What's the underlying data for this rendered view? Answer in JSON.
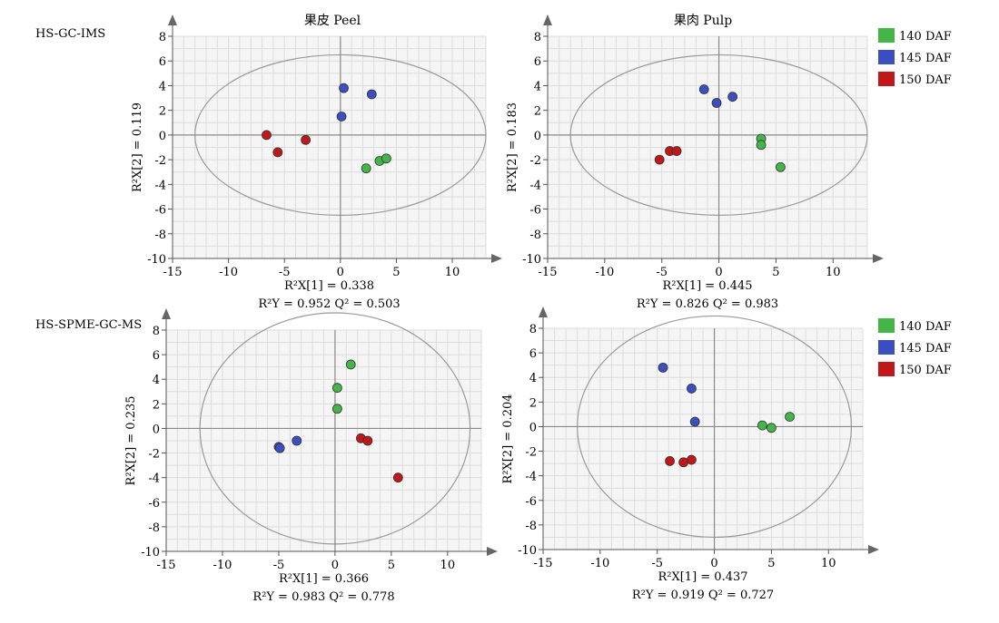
{
  "row_labels": [
    "HS-GC-IMS",
    "HS-SPME-GC-MS"
  ],
  "col_titles": [
    "果皮 Peel",
    "果肉 Pulp"
  ],
  "legend": [
    {
      "label": "140 DAF",
      "color": "#44b649"
    },
    {
      "label": "145 DAF",
      "color": "#3b4fc0"
    },
    {
      "label": "150 DAF",
      "color": "#c0171b"
    }
  ],
  "chart_data": [
    {
      "type": "scatter",
      "xlim": [
        -15,
        13
      ],
      "ylim": [
        -10,
        8
      ],
      "xticks": [
        -15,
        -10,
        -5,
        0,
        5,
        10
      ],
      "yticks": [
        8,
        6,
        4,
        2,
        0,
        -2,
        -4,
        -6,
        -8,
        -10
      ],
      "ellipse": {
        "rx": 13,
        "ry": 6.5
      },
      "xlabel": "R²X[1] = 0.338",
      "ylabel": "R²X[2] = 0.119",
      "stats": "R²Y = 0.952   Q² = 0.503",
      "series": [
        {
          "name": "140 DAF",
          "points": [
            [
              2.3,
              -2.7
            ],
            [
              3.5,
              -2.1
            ],
            [
              4.1,
              -1.9
            ]
          ]
        },
        {
          "name": "145 DAF",
          "points": [
            [
              0.3,
              3.8
            ],
            [
              2.8,
              3.3
            ],
            [
              0.1,
              1.5
            ]
          ]
        },
        {
          "name": "150 DAF",
          "points": [
            [
              -6.6,
              0.0
            ],
            [
              -3.1,
              -0.4
            ],
            [
              -5.6,
              -1.4
            ]
          ]
        }
      ]
    },
    {
      "type": "scatter",
      "xlim": [
        -15,
        13
      ],
      "ylim": [
        -10,
        8
      ],
      "xticks": [
        -15,
        -10,
        -5,
        0,
        5,
        10
      ],
      "yticks": [
        8,
        6,
        4,
        2,
        0,
        -2,
        -4,
        -6,
        -8,
        -10
      ],
      "ellipse": {
        "rx": 13,
        "ry": 6.5
      },
      "xlabel": "R²X[1] = 0.445",
      "ylabel": "R²X[2] = 0.183",
      "stats": "R²Y = 0.826   Q² = 0.983",
      "series": [
        {
          "name": "140 DAF",
          "points": [
            [
              3.7,
              -0.3
            ],
            [
              3.7,
              -0.8
            ],
            [
              5.4,
              -2.6
            ]
          ]
        },
        {
          "name": "145 DAF",
          "points": [
            [
              -1.3,
              3.7
            ],
            [
              -0.2,
              2.6
            ],
            [
              1.2,
              3.1
            ]
          ]
        },
        {
          "name": "150 DAF",
          "points": [
            [
              -4.3,
              -1.3
            ],
            [
              -3.7,
              -1.3
            ],
            [
              -5.2,
              -2.0
            ]
          ]
        }
      ]
    },
    {
      "type": "scatter",
      "xlim": [
        -15,
        13
      ],
      "ylim": [
        -10,
        8
      ],
      "xticks": [
        -15,
        -10,
        -5,
        0,
        5,
        10
      ],
      "yticks": [
        8,
        6,
        4,
        2,
        0,
        -2,
        -4,
        -6,
        -8,
        -10
      ],
      "ellipse": {
        "rx": 12,
        "ry": 9.4
      },
      "xlabel": "R²X[1] = 0.366",
      "ylabel": "R²X[2] = 0.235",
      "stats": "R²Y = 0.983   Q² = 0.778",
      "series": [
        {
          "name": "140 DAF",
          "points": [
            [
              1.4,
              5.2
            ],
            [
              0.2,
              3.3
            ],
            [
              0.2,
              1.6
            ]
          ]
        },
        {
          "name": "145 DAF",
          "points": [
            [
              -5.0,
              -1.5
            ],
            [
              -4.9,
              -1.6
            ],
            [
              -3.4,
              -1.0
            ]
          ]
        },
        {
          "name": "150 DAF",
          "points": [
            [
              2.3,
              -0.8
            ],
            [
              2.9,
              -1.0
            ],
            [
              5.6,
              -4.0
            ]
          ]
        }
      ]
    },
    {
      "type": "scatter",
      "xlim": [
        -15,
        13
      ],
      "ylim": [
        -10,
        8
      ],
      "xticks": [
        -15,
        -10,
        -5,
        0,
        5,
        10
      ],
      "yticks": [
        8,
        6,
        4,
        2,
        0,
        -2,
        -4,
        -6,
        -8,
        -10
      ],
      "ellipse": {
        "rx": 12,
        "ry": 9.0
      },
      "xlabel": "R²X[1] = 0.437",
      "ylabel": "R²X[2] = 0.204",
      "stats": "R²Y = 0.919   Q² = 0.727",
      "series": [
        {
          "name": "140 DAF",
          "points": [
            [
              4.2,
              0.1
            ],
            [
              5.0,
              -0.1
            ],
            [
              6.6,
              0.8
            ]
          ]
        },
        {
          "name": "145 DAF",
          "points": [
            [
              -4.5,
              4.8
            ],
            [
              -2.0,
              3.1
            ],
            [
              -1.7,
              0.4
            ]
          ]
        },
        {
          "name": "150 DAF",
          "points": [
            [
              -3.9,
              -2.8
            ],
            [
              -2.7,
              -2.9
            ],
            [
              -2.0,
              -2.7
            ]
          ]
        }
      ]
    }
  ]
}
